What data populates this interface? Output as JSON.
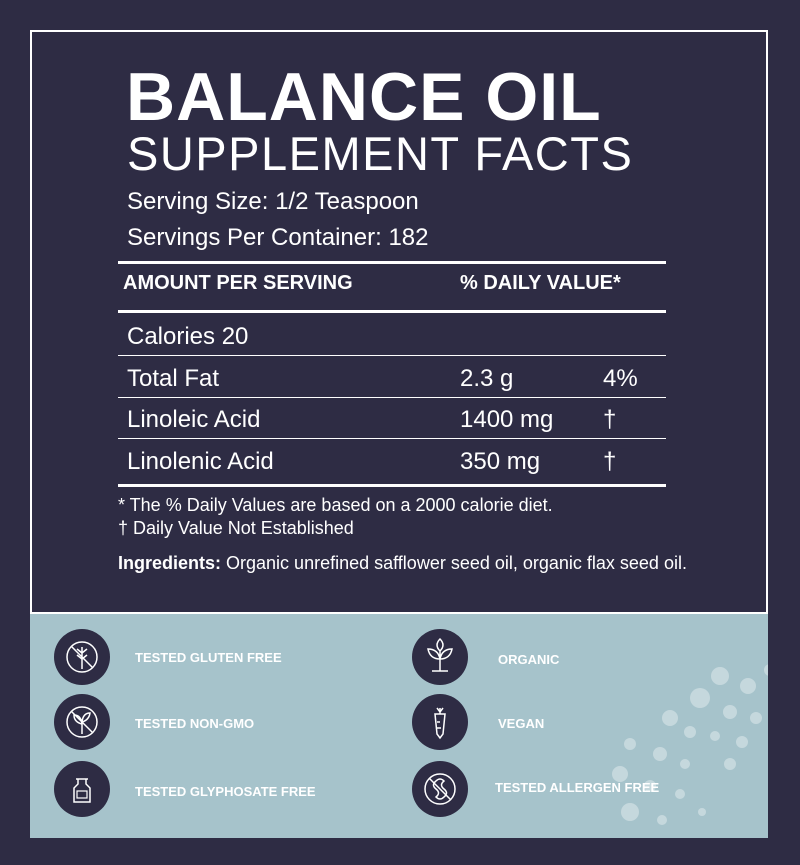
{
  "header": {
    "title": "BALANCE OIL",
    "subtitle": "SUPPLEMENT FACTS",
    "serving_size": "Serving Size: 1/2 Teaspoon",
    "servings_per_container": "Servings Per Container: 182"
  },
  "table": {
    "columns": [
      "AMOUNT PER SERVING",
      "% DAILY VALUE*"
    ],
    "rows": [
      [
        "Calories 20"
      ],
      [
        "Total Fat",
        "2.3 g",
        "4%"
      ],
      [
        "Linoleic Acid",
        "1400 mg",
        "†"
      ],
      [
        "Linolenic Acid",
        "350 mg",
        "†"
      ]
    ]
  },
  "footnotes": [
    "* The % Daily Values are based on a 2000 calorie diet.",
    "† Daily Value Not Established"
  ],
  "ingredients": {
    "label": "Ingredients:",
    "text": "Organic unrefined safflower seed oil, organic flax seed oil."
  },
  "badges": [
    "TESTED GLUTEN FREE",
    "TESTED NON-GMO",
    "TESTED GLYPHOSATE FREE",
    "ORGANIC",
    "VEGAN",
    "TESTED ALLERGEN FREE"
  ]
}
